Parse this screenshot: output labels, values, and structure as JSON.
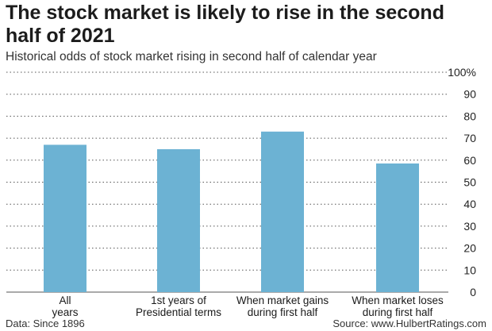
{
  "title": "The stock market is likely to rise in the second half of 2021",
  "subtitle": "Historical odds of stock market rising in second half of calendar year",
  "source_note": "Data: Since 1896",
  "source_credit": "Source: www.HulbertRatings.com",
  "colors": {
    "bar": "#6cb2d3",
    "grid": "#555555"
  },
  "chart_data": {
    "type": "bar",
    "title": "The stock market is likely to rise in the second half of 2021",
    "subtitle": "Historical odds of stock market rising in second half of calendar year",
    "categories": [
      [
        "All",
        "years"
      ],
      [
        "1st years of",
        "Presidential terms"
      ],
      [
        "When market gains",
        "during first half"
      ],
      [
        "When market loses",
        "during  first half"
      ]
    ],
    "values": [
      67,
      65,
      73,
      58.5
    ],
    "ylim": [
      0,
      100
    ],
    "yticks": [
      "0",
      "10",
      "20",
      "30",
      "40",
      "50",
      "60",
      "70",
      "80",
      "90",
      "100%"
    ],
    "grid": true,
    "y_axis_side": "right"
  }
}
